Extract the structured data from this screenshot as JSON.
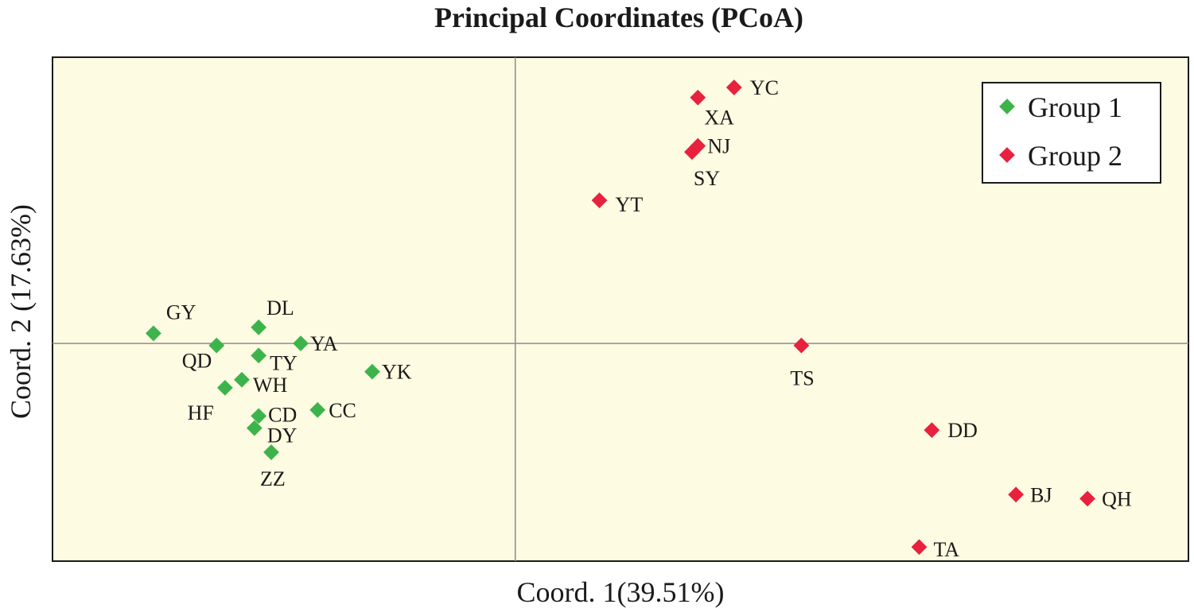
{
  "chart_data": {
    "type": "scatter",
    "title": "Principal Coordinates (PCoA)",
    "xlabel": "Coord. 1(39.51%)",
    "ylabel": "Coord. 2 (17.63%)",
    "xlim": [
      -0.55,
      0.8
    ],
    "ylim": [
      -0.54,
      0.71
    ],
    "grid": false,
    "zero_lines": true,
    "legend_position": "top-right",
    "colors": {
      "Group 1": "#3cb44b",
      "Group 2": "#e8213e",
      "plot_background": "#fdfbe1"
    },
    "series": [
      {
        "name": "Group 1",
        "points": [
          {
            "label": "GY",
            "x": -0.43,
            "y": 0.025
          },
          {
            "label": "QD",
            "x": -0.355,
            "y": -0.005
          },
          {
            "label": "DL",
            "x": -0.305,
            "y": 0.04
          },
          {
            "label": "YA",
            "x": -0.255,
            "y": 0.0
          },
          {
            "label": "TY",
            "x": -0.305,
            "y": -0.03
          },
          {
            "label": "WH",
            "x": -0.325,
            "y": -0.09
          },
          {
            "label": "HF",
            "x": -0.345,
            "y": -0.11
          },
          {
            "label": "YK",
            "x": -0.17,
            "y": -0.07
          },
          {
            "label": "CC",
            "x": -0.235,
            "y": -0.165
          },
          {
            "label": "CD",
            "x": -0.305,
            "y": -0.18
          },
          {
            "label": "DY",
            "x": -0.31,
            "y": -0.21
          },
          {
            "label": "ZZ",
            "x": -0.29,
            "y": -0.27
          }
        ]
      },
      {
        "name": "Group 2",
        "points": [
          {
            "label": "YC",
            "x": 0.26,
            "y": 0.635
          },
          {
            "label": "XA",
            "x": 0.217,
            "y": 0.61
          },
          {
            "label": "NJ",
            "x": 0.217,
            "y": 0.49
          },
          {
            "label": "SY",
            "x": 0.21,
            "y": 0.475
          },
          {
            "label": "YT",
            "x": 0.1,
            "y": 0.355
          },
          {
            "label": "TS",
            "x": 0.34,
            "y": -0.005
          },
          {
            "label": "DD",
            "x": 0.495,
            "y": -0.215
          },
          {
            "label": "BJ",
            "x": 0.595,
            "y": -0.375
          },
          {
            "label": "QH",
            "x": 0.68,
            "y": -0.385
          },
          {
            "label": "TA",
            "x": 0.48,
            "y": -0.505
          }
        ]
      }
    ]
  }
}
